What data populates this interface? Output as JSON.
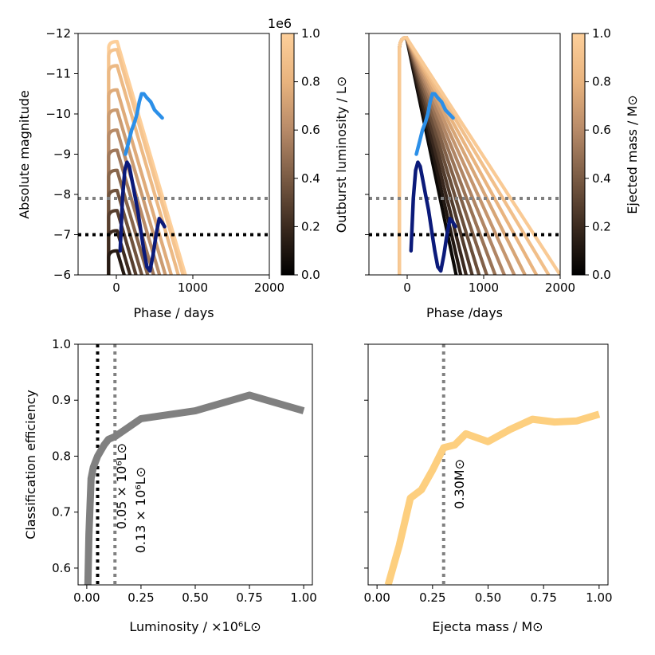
{
  "chart_data": [
    {
      "type": "line",
      "panel": "top-left",
      "xlabel": "Phase / days",
      "ylabel": "Absolute magnitude",
      "xlim": [
        -500,
        2000
      ],
      "ylim": [
        -6,
        -12
      ],
      "xticks": [
        0,
        1000,
        2000
      ],
      "yticks": [
        -12,
        -11,
        -10,
        -9,
        -8,
        -7,
        -6
      ],
      "colorbar": {
        "label": "Outburst luminosity / L⊙",
        "ticks": [
          0.0,
          0.2,
          0.4,
          0.6,
          0.8,
          1.0
        ],
        "offset_text": "1e6"
      },
      "model_peaks": [
        -11.8,
        -11.6,
        -11.2,
        -10.6,
        -10.1,
        -9.6,
        -9.1,
        -8.6,
        -8.1,
        -7.6,
        -7.1,
        -6.6
      ],
      "model_rise_start": -100,
      "model_decline_rate_mag_per_day": 0.0065,
      "hlines": [
        {
          "y": -7.9,
          "color": "gray"
        },
        {
          "y": -7.0,
          "color": "black"
        }
      ],
      "observed": [
        {
          "name": "light blue event",
          "color": "#2b8fe8",
          "x": [
            120,
            160,
            200,
            240,
            270,
            300,
            330,
            360,
            400,
            450,
            500,
            550,
            600
          ],
          "y": [
            -9.0,
            -9.3,
            -9.6,
            -9.8,
            -10.0,
            -10.3,
            -10.5,
            -10.5,
            -10.4,
            -10.3,
            -10.1,
            -10.0,
            -9.9
          ]
        },
        {
          "name": "dark blue event",
          "color": "#0b1a7a",
          "x": [
            50,
            80,
            110,
            140,
            170,
            200,
            240,
            280,
            320,
            360,
            400,
            440,
            480,
            520,
            560,
            600,
            630
          ],
          "y": [
            -6.6,
            -7.9,
            -8.6,
            -8.8,
            -8.7,
            -8.4,
            -8.0,
            -7.6,
            -7.1,
            -6.6,
            -6.2,
            -6.1,
            -6.5,
            -7.0,
            -7.4,
            -7.3,
            -7.2
          ]
        }
      ]
    },
    {
      "type": "line",
      "panel": "top-right",
      "xlabel": "Phase /days",
      "ylabel": "",
      "xlim": [
        -500,
        2000
      ],
      "ylim": [
        -6,
        -12
      ],
      "xticks": [
        0,
        1000,
        2000
      ],
      "colorbar": {
        "label": "Ejected mass / M⊙",
        "ticks": [
          0.0,
          0.2,
          0.4,
          0.6,
          0.8,
          1.0
        ]
      },
      "model_peak": -11.9,
      "model_end_phases": [
        640,
        700,
        770,
        850,
        940,
        1040,
        1150,
        1270,
        1400,
        1540,
        1690,
        1850,
        2000
      ],
      "hlines": [
        {
          "y": -7.9,
          "color": "gray"
        },
        {
          "y": -7.0,
          "color": "black"
        }
      ]
    },
    {
      "type": "line",
      "panel": "bottom-left",
      "xlabel": "Luminosity / ×10⁶L⊙",
      "ylabel": "Classification efficiency",
      "xlim": [
        -0.04,
        1.04
      ],
      "ylim": [
        0.57,
        1.0
      ],
      "xticks": [
        0.0,
        0.25,
        0.5,
        0.75,
        1.0
      ],
      "yticks": [
        0.6,
        0.7,
        0.8,
        0.9,
        1.0
      ],
      "series": [
        {
          "name": "efficiency",
          "color": "#808080",
          "x": [
            0.005,
            0.01,
            0.02,
            0.03,
            0.05,
            0.08,
            0.1,
            0.13,
            0.25,
            0.5,
            0.75,
            1.0
          ],
          "y": [
            0.57,
            0.66,
            0.76,
            0.78,
            0.8,
            0.82,
            0.83,
            0.835,
            0.867,
            0.881,
            0.909,
            0.881
          ]
        }
      ],
      "vlines": [
        {
          "x": 0.05,
          "color": "black",
          "label": "0.05 × 10⁶L⊙"
        },
        {
          "x": 0.13,
          "color": "gray",
          "label": "0.13 × 10⁶L⊙"
        }
      ]
    },
    {
      "type": "line",
      "panel": "bottom-right",
      "xlabel": "Ejecta mass / M⊙",
      "ylabel": "",
      "xlim": [
        -0.04,
        1.04
      ],
      "ylim": [
        0.57,
        1.0
      ],
      "xticks": [
        0.0,
        0.25,
        0.5,
        0.75,
        1.0
      ],
      "series": [
        {
          "name": "efficiency",
          "color": "#fdcf7f",
          "x": [
            0.05,
            0.1,
            0.15,
            0.2,
            0.25,
            0.3,
            0.35,
            0.4,
            0.5,
            0.6,
            0.7,
            0.8,
            0.9,
            1.0
          ],
          "y": [
            0.57,
            0.64,
            0.725,
            0.74,
            0.775,
            0.815,
            0.82,
            0.84,
            0.826,
            0.848,
            0.866,
            0.861,
            0.863,
            0.875
          ]
        }
      ],
      "vlines": [
        {
          "x": 0.3,
          "color": "gray",
          "label": "0.30M⊙"
        }
      ]
    }
  ],
  "labels": {
    "tl_x": "Phase / days",
    "tl_y": "Absolute magnitude",
    "tr_x": "Phase /days",
    "cb1": "Outburst luminosity / L⊙",
    "cb1_off": "1e6",
    "cb2": "Ejected mass / M⊙",
    "bl_x": "Luminosity / ×10⁶L⊙",
    "bl_y": "Classification efficiency",
    "br_x": "Ejecta mass / M⊙",
    "vl_black": "0.05 × 10⁶L⊙",
    "vl_gray": "0.13 × 10⁶L⊙",
    "vr_gray": "0.30M⊙"
  },
  "colormap": [
    "#000000",
    "#3b2a1f",
    "#7a5b44",
    "#b78a68",
    "#e8b37e",
    "#fdcf9a"
  ]
}
